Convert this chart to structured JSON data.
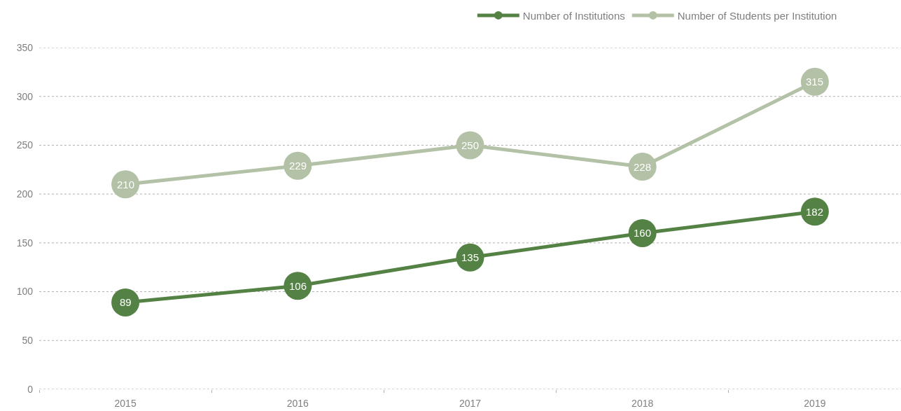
{
  "chart_data": {
    "type": "line",
    "categories": [
      "2015",
      "2016",
      "2017",
      "2018",
      "2019"
    ],
    "series": [
      {
        "name": "Number of Institutions",
        "color": "#548245",
        "values": [
          89,
          106,
          135,
          160,
          182
        ]
      },
      {
        "name": "Number of Students per Institution",
        "color": "#b3c1a6",
        "values": [
          210,
          229,
          250,
          228,
          315
        ]
      }
    ],
    "ylim": [
      0,
      350
    ],
    "yticks": [
      0,
      50,
      100,
      150,
      200,
      250,
      300,
      350
    ],
    "grid": "y",
    "legend": "top right",
    "marker": "circle",
    "line_style": "solid",
    "data_labels": true
  }
}
